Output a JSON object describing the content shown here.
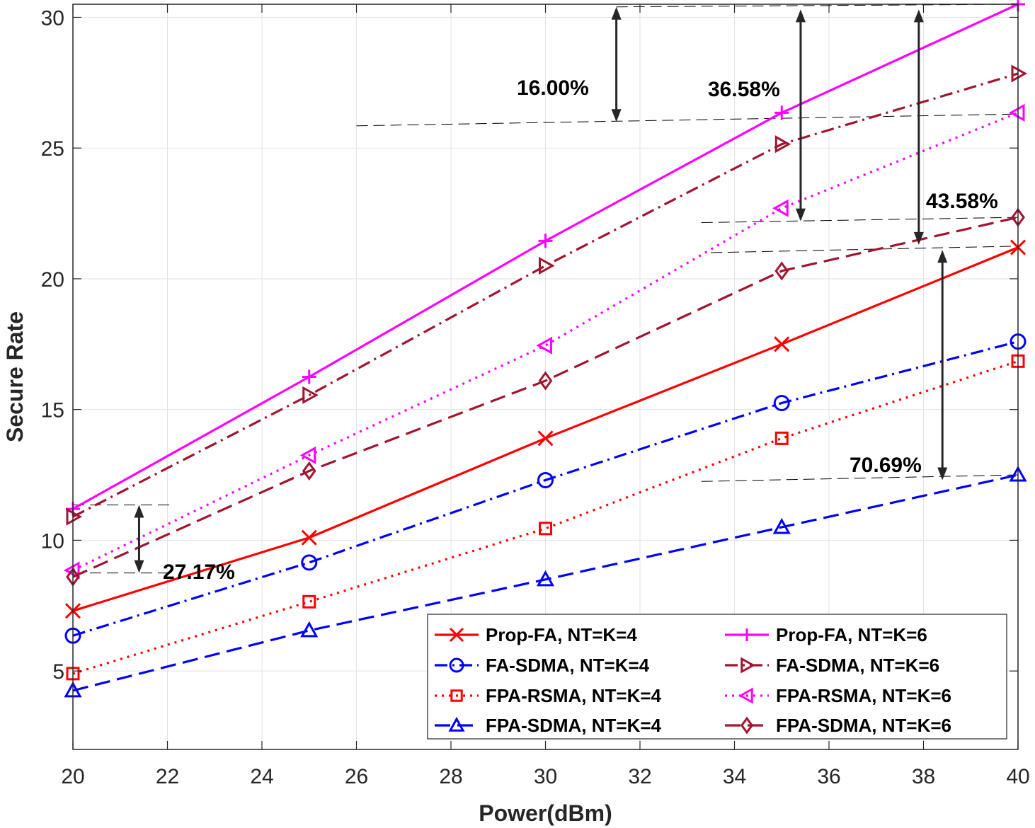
{
  "chart_data": {
    "type": "line",
    "xlabel": "Power(dBm)",
    "ylabel": "Secure Rate",
    "xlim": [
      20,
      40
    ],
    "ylim": [
      2,
      30.5
    ],
    "xticks": [
      20,
      22,
      24,
      26,
      28,
      30,
      32,
      34,
      36,
      38,
      40
    ],
    "yticks": [
      5,
      10,
      15,
      20,
      25,
      30
    ],
    "grid": true,
    "legend_position": "bottom-right",
    "x": [
      20,
      25,
      30,
      35,
      40
    ],
    "series": [
      {
        "name": "Prop-FA, NT=K=4",
        "values": [
          7.3,
          10.1,
          13.9,
          17.5,
          21.2
        ],
        "color": "#ff0000",
        "dash": "solid",
        "marker": "x"
      },
      {
        "name": "FA-SDMA, NT=K=4",
        "values": [
          6.35,
          9.15,
          12.3,
          15.25,
          17.6
        ],
        "color": "#0000ff",
        "dash": "dashdot",
        "marker": "circle"
      },
      {
        "name": "FPA-RSMA, NT=K=4",
        "values": [
          4.9,
          7.65,
          10.45,
          13.9,
          16.85
        ],
        "color": "#ff0000",
        "dash": "dotted",
        "marker": "square"
      },
      {
        "name": "FPA-SDMA, NT=K=4",
        "values": [
          4.25,
          6.55,
          8.5,
          10.5,
          12.5
        ],
        "color": "#0000ff",
        "dash": "dashed",
        "marker": "triangle-up"
      },
      {
        "name": "Prop-FA, NT=K=6",
        "values": [
          11.2,
          16.25,
          21.45,
          26.35,
          30.5
        ],
        "color": "#ff00ff",
        "dash": "solid",
        "marker": "plus"
      },
      {
        "name": "FA-SDMA, NT=K=6",
        "values": [
          10.9,
          15.55,
          20.5,
          25.15,
          27.85
        ],
        "color": "#a2142f",
        "dash": "dashdot",
        "marker": "triangle-right"
      },
      {
        "name": "FPA-RSMA, NT=K=6",
        "values": [
          8.85,
          13.25,
          17.45,
          22.7,
          26.35
        ],
        "color": "#ff00ff",
        "dash": "dotted",
        "marker": "triangle-left"
      },
      {
        "name": "FPA-SDMA, NT=K=6",
        "values": [
          8.6,
          12.65,
          16.1,
          20.3,
          22.35
        ],
        "color": "#a2142f",
        "dash": "dashed",
        "marker": "diamond"
      }
    ],
    "annotations": [
      {
        "text": "16.00%"
      },
      {
        "text": "36.58%"
      },
      {
        "text": "43.58%"
      },
      {
        "text": "70.69%"
      },
      {
        "text": "27.17%"
      }
    ]
  }
}
